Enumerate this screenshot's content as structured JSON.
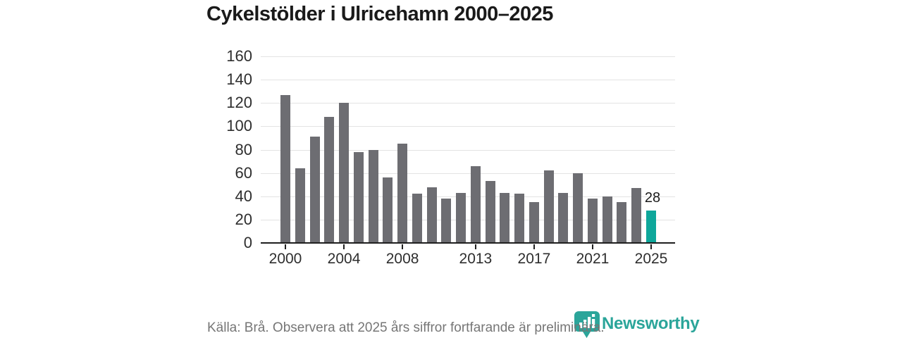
{
  "title": "Cykelstölder i Ulricehamn 2000–2025",
  "footer": {
    "source_note": "Källa: Brå. Observera att 2025 års siffror fortfarande är preliminära."
  },
  "branding": {
    "logo_text": "Newsworthy",
    "logo_icon": "newsworthy-barchart-bubble-icon",
    "brand_color": "#2ba59a"
  },
  "colors": {
    "bar_default": "#6d6d72",
    "bar_highlight": "#0ea79b",
    "gridline": "#e3e3e3",
    "axis": "#1f1f1f",
    "title_text": "#1a1a1a",
    "muted_text": "#767676"
  },
  "chart_data": {
    "type": "bar",
    "title": "Cykelstölder i Ulricehamn 2000–2025",
    "x": [
      2000,
      2001,
      2002,
      2003,
      2004,
      2005,
      2006,
      2007,
      2008,
      2009,
      2010,
      2011,
      2012,
      2013,
      2014,
      2015,
      2016,
      2017,
      2018,
      2019,
      2020,
      2021,
      2022,
      2023,
      2024,
      2025
    ],
    "values": [
      127,
      64,
      91,
      108,
      120,
      78,
      80,
      56,
      85,
      42,
      48,
      38,
      43,
      66,
      53,
      43,
      42,
      35,
      62,
      43,
      60,
      38,
      40,
      35,
      47,
      28
    ],
    "highlight_year": 2025,
    "data_label": {
      "year": 2025,
      "text": "28"
    },
    "xlabel": "",
    "ylabel": "",
    "ylim": [
      0,
      160
    ],
    "yticks": [
      0,
      20,
      40,
      60,
      80,
      100,
      120,
      140,
      160
    ],
    "xticks": [
      2000,
      2004,
      2008,
      2013,
      2017,
      2021,
      2025
    ],
    "grid": true,
    "legend": false
  }
}
